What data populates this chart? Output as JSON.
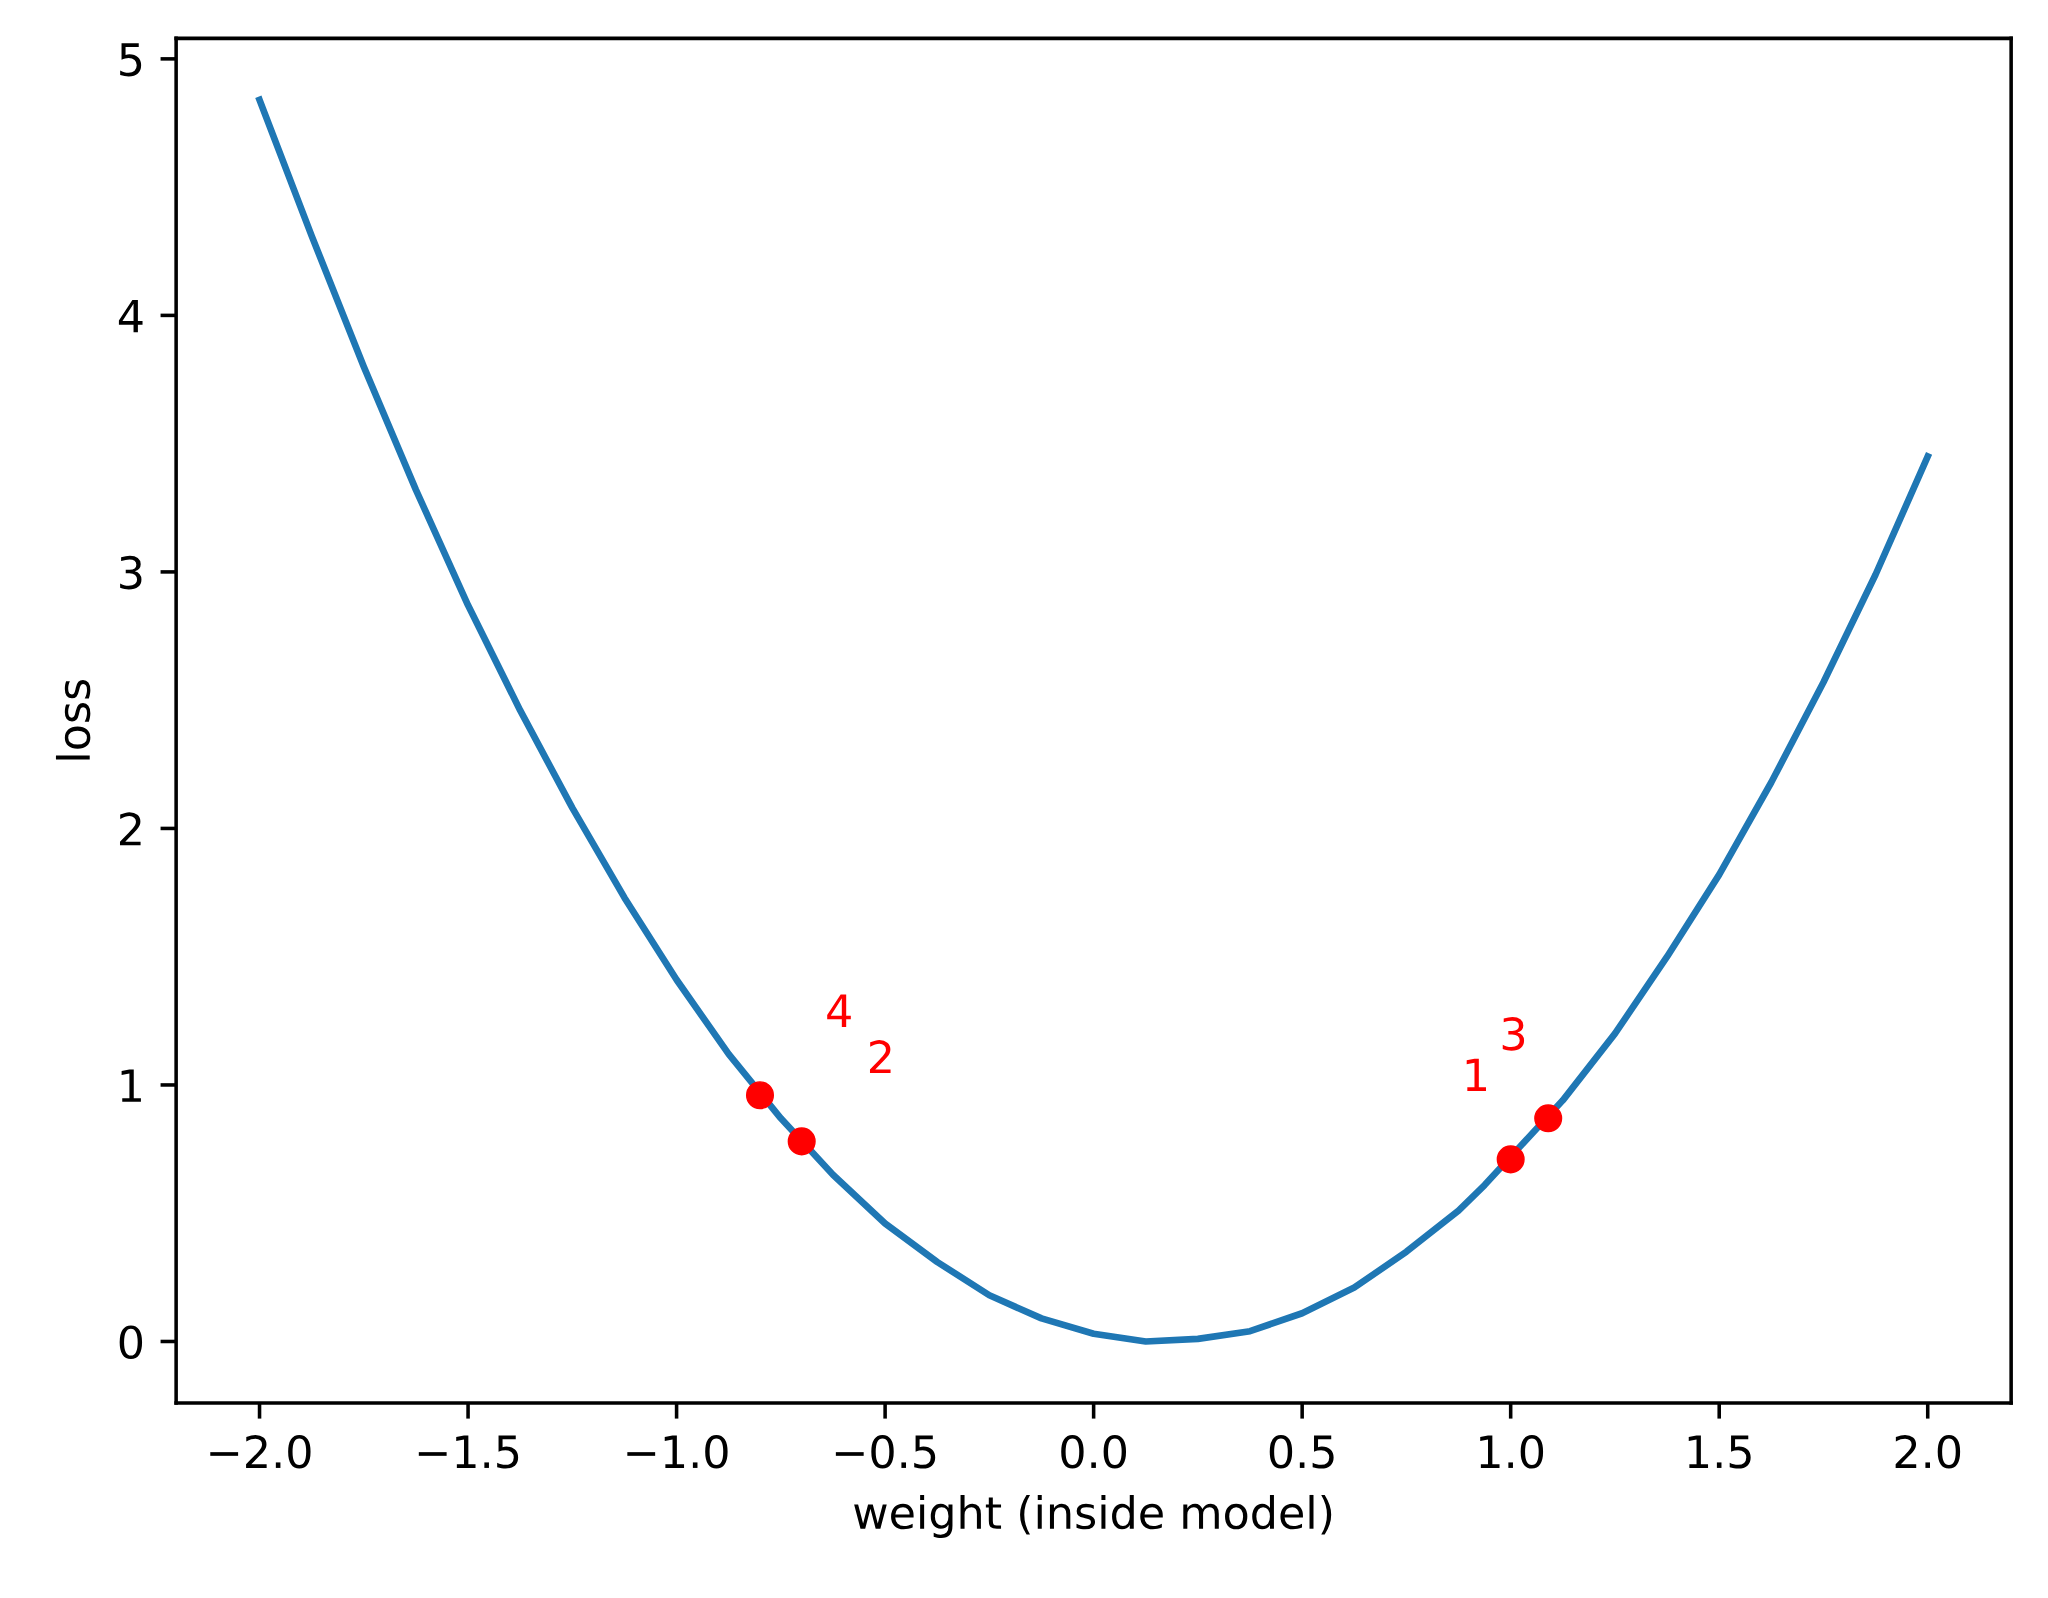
{
  "chart_data": {
    "type": "line",
    "xlabel": "weight (inside model)",
    "ylabel": "loss",
    "xlim": [
      -2.2,
      2.2
    ],
    "ylim": [
      -0.24,
      5.08
    ],
    "xticks": [
      {
        "value": -2.0,
        "label": "−2.0"
      },
      {
        "value": -1.5,
        "label": "−1.5"
      },
      {
        "value": -1.0,
        "label": "−1.0"
      },
      {
        "value": -0.5,
        "label": "−0.5"
      },
      {
        "value": 0.0,
        "label": "0.0"
      },
      {
        "value": 0.5,
        "label": "0.5"
      },
      {
        "value": 1.0,
        "label": "1.0"
      },
      {
        "value": 1.5,
        "label": "1.5"
      },
      {
        "value": 2.0,
        "label": "2.0"
      }
    ],
    "yticks": [
      0,
      1,
      2,
      3,
      4,
      5
    ],
    "grid": false,
    "legend": false,
    "series": [
      {
        "type": "line",
        "color": "#1f77b4",
        "marker": "none",
        "line_style": "solid",
        "x": [
          -2.0,
          -1.875,
          -1.75,
          -1.625,
          -1.5,
          -1.375,
          -1.25,
          -1.125,
          -1.0,
          -0.875,
          -0.75,
          -0.625,
          -0.5,
          -0.375,
          -0.25,
          -0.125,
          0.0,
          0.125,
          0.25,
          0.375,
          0.5,
          0.625,
          0.75,
          0.875,
          0.9375,
          1.125,
          1.25,
          1.375,
          1.5,
          1.625,
          1.75,
          1.875,
          2.0
        ],
        "values": [
          4.84,
          4.31,
          3.8,
          3.32,
          2.87,
          2.46,
          2.08,
          1.73,
          1.41,
          1.12,
          0.87,
          0.65,
          0.46,
          0.31,
          0.18,
          0.09,
          0.03,
          0.0,
          0.01,
          0.04,
          0.11,
          0.21,
          0.35,
          0.51,
          0.61,
          0.94,
          1.2,
          1.5,
          1.82,
          2.18,
          2.57,
          2.99,
          3.45
        ]
      },
      {
        "type": "scatter",
        "color": "#ff0000",
        "marker": "circle",
        "x": [
          -0.8,
          -0.7,
          1.0,
          1.09
        ],
        "values": [
          0.96,
          0.78,
          0.71,
          0.87
        ]
      }
    ],
    "annotations": [
      {
        "text": "1",
        "x": 1.0,
        "y": 0.71
      },
      {
        "text": "2",
        "x": -0.7,
        "y": 0.78
      },
      {
        "text": "3",
        "x": 1.09,
        "y": 0.87
      },
      {
        "text": "4",
        "x": -0.8,
        "y": 0.96
      }
    ]
  }
}
